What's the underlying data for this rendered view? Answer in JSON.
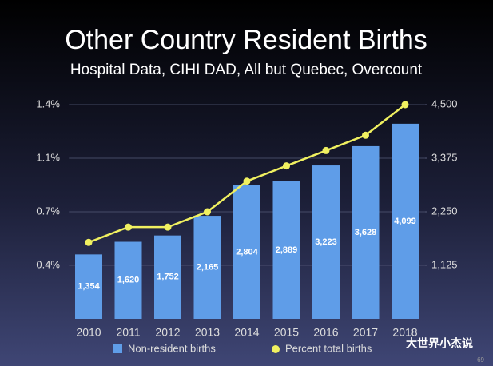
{
  "chart_data": {
    "type": "combo",
    "title": "Other Country Resident Births",
    "subtitle": "Hospital Data, CIHI DAD, All but Quebec, Overcount",
    "categories": [
      "2010",
      "2011",
      "2012",
      "2013",
      "2014",
      "2015",
      "2016",
      "2017",
      "2018"
    ],
    "series": [
      {
        "name": "Non-resident births",
        "type": "bar",
        "axis": "y2",
        "color": "#5f9de8",
        "values": [
          1354,
          1620,
          1752,
          2165,
          2804,
          2889,
          3223,
          3628,
          4099
        ],
        "value_labels": [
          "1,354",
          "1,620",
          "1,752",
          "2,165",
          "2,804",
          "2,889",
          "3,223",
          "3,628",
          "4,099"
        ]
      },
      {
        "name": "Percent total births",
        "type": "line",
        "color": "#f0f060",
        "values": [
          0.5,
          0.6,
          0.6,
          0.7,
          0.9,
          1.0,
          1.1,
          1.2,
          1.4
        ]
      }
    ],
    "ylim": [
      0,
      1.4
    ],
    "yticks": [
      {
        "value": 0.35,
        "label": "0.4%"
      },
      {
        "value": 0.7,
        "label": "0.7%"
      },
      {
        "value": 1.05,
        "label": "1.1%"
      },
      {
        "value": 1.4,
        "label": "1.4%"
      }
    ],
    "y2lim": [
      0,
      4500
    ],
    "y2ticks": [
      {
        "value": 1125,
        "label": "1,125"
      },
      {
        "value": 2250,
        "label": "2,250"
      },
      {
        "value": 3375,
        "label": "3,375"
      },
      {
        "value": 4500,
        "label": "4,500"
      }
    ],
    "grid": true
  },
  "watermark": "大世界小杰说",
  "page_number": "69"
}
